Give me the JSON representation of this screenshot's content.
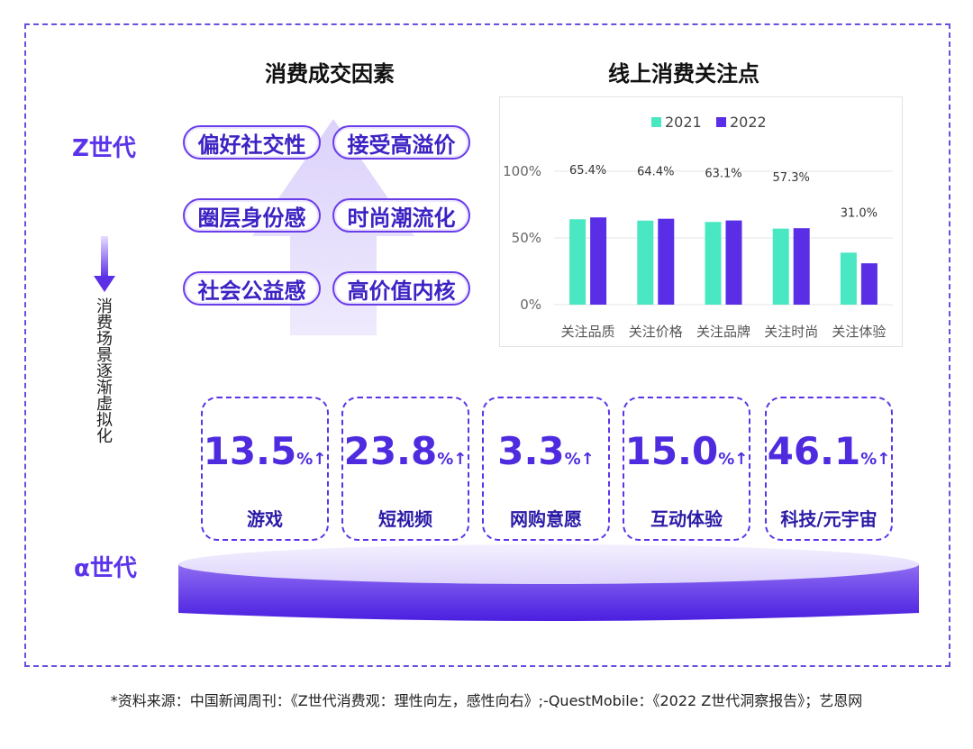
{
  "left_title": "消费成交因素",
  "right_title": "线上消费关注点",
  "gen_z_label": "Z世代",
  "gen_alpha_label": "α世代",
  "vertical_note": "消费场景逐渐虚拟化",
  "factors": [
    "偏好社交性",
    "接受高溢价",
    "圈层身份感",
    "时尚潮流化",
    "社会公益感",
    "高价值内核"
  ],
  "stats": [
    {
      "value": "13.5",
      "unit": "%↑",
      "label": "游戏"
    },
    {
      "value": "23.8",
      "unit": "%↑",
      "label": "短视频"
    },
    {
      "value": "3.3",
      "unit": "%↑",
      "label": "网购意愿"
    },
    {
      "value": "15.0",
      "unit": "%↑",
      "label": "互动体验"
    },
    {
      "value": "46.1",
      "unit": "%↑",
      "label": "科技/元宇宙"
    }
  ],
  "source": "*资料来源：中国新闻周刊：《Z世代消费观：理性向左，感性向右》;-QuestMobile：《2022 Z世代洞察报告》；艺恩网",
  "colors": {
    "accent": "#5b34ea",
    "teal": "#49e8c2",
    "purple": "#5a2de6"
  },
  "chart_data": {
    "type": "bar",
    "categories": [
      "关注品质",
      "关注价格",
      "关注品牌",
      "关注时尚",
      "关注体验"
    ],
    "series": [
      {
        "name": "2021",
        "values": [
          64,
          63,
          62,
          57,
          39
        ]
      },
      {
        "name": "2022",
        "values": [
          65.4,
          64.4,
          63.1,
          57.3,
          31.0
        ]
      }
    ],
    "data_labels": [
      "65.4%",
      "64.4%",
      "63.1%",
      "57.3%",
      "31.0%"
    ],
    "yticks": [
      "100%",
      "50%",
      "0%"
    ],
    "ylim": [
      0,
      100
    ],
    "grid": true,
    "legend": "top"
  }
}
